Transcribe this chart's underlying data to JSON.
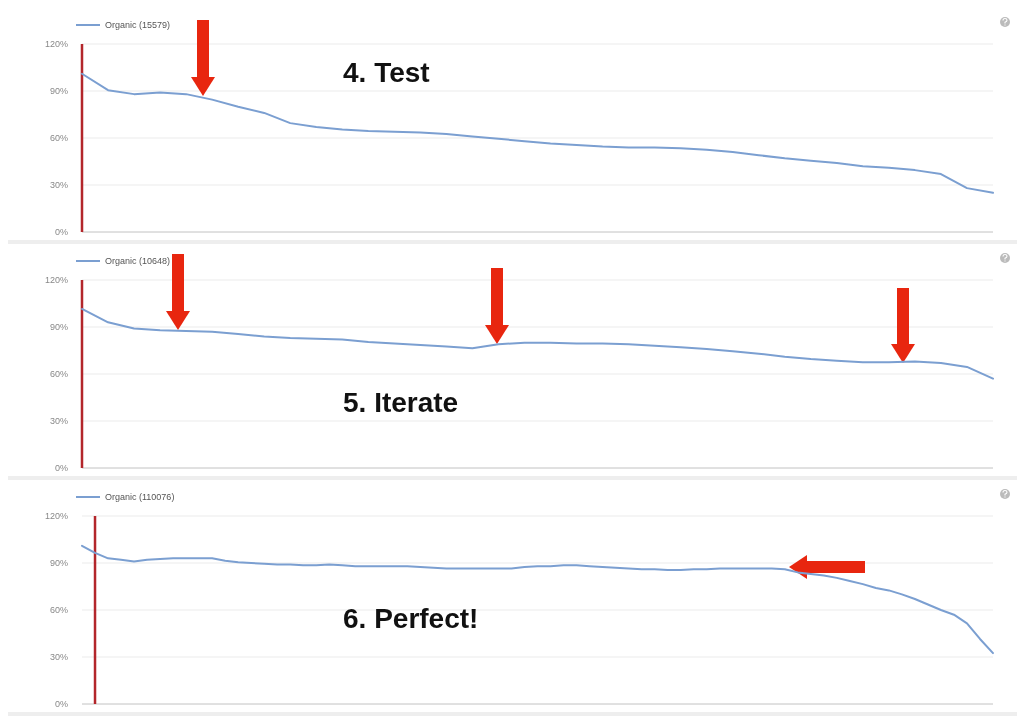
{
  "chart_data": [
    {
      "type": "line",
      "categories": [
        null,
        null,
        null,
        null,
        null,
        null,
        null,
        null,
        null,
        null,
        null,
        null,
        null,
        null,
        null,
        null,
        null,
        null,
        null,
        null,
        null,
        null,
        null,
        null,
        null,
        null,
        null,
        null,
        null,
        null,
        null,
        null,
        null,
        null,
        null,
        null
      ],
      "ylim": [
        0,
        120
      ],
      "yticks": [
        {
          "value": 0,
          "label": "0%"
        },
        {
          "value": 30,
          "label": "30%"
        },
        {
          "value": 60,
          "label": "60%"
        },
        {
          "value": 90,
          "label": "90%"
        },
        {
          "value": 120,
          "label": "120%"
        }
      ],
      "grid": "y",
      "legend": "top left",
      "tick_labels": "y",
      "annotations": [
        "4. Test"
      ],
      "series": [
        {
          "name": "Organic (15579)",
          "color": "#7b9fd1",
          "values": [
            101,
            90.5,
            88,
            89,
            88,
            84.5,
            80,
            76,
            69.5,
            67,
            65.5,
            64.5,
            64,
            63.5,
            62.5,
            61,
            59.5,
            58,
            56.5,
            55.5,
            54.5,
            54,
            54,
            53.5,
            52.5,
            51,
            49,
            47,
            45.5,
            44,
            42,
            41,
            39.5,
            37,
            28,
            25
          ]
        }
      ]
    },
    {
      "type": "line",
      "categories": [
        null,
        null,
        null,
        null,
        null,
        null,
        null,
        null,
        null,
        null,
        null,
        null,
        null,
        null,
        null,
        null,
        null,
        null,
        null,
        null,
        null,
        null,
        null,
        null,
        null,
        null,
        null,
        null,
        null,
        null,
        null,
        null,
        null,
        null,
        null,
        null
      ],
      "ylim": [
        0,
        120
      ],
      "yticks": [
        {
          "value": 0,
          "label": "0%"
        },
        {
          "value": 30,
          "label": "30%"
        },
        {
          "value": 60,
          "label": "60%"
        },
        {
          "value": 90,
          "label": "90%"
        },
        {
          "value": 120,
          "label": "120%"
        }
      ],
      "grid": "y",
      "legend": "top left",
      "tick_labels": "y",
      "annotations": [
        "5. Iterate"
      ],
      "series": [
        {
          "name": "Organic (10648)",
          "color": "#7b9fd1",
          "values": [
            101.5,
            93,
            89,
            88,
            87.5,
            87,
            85.5,
            84,
            83,
            82.5,
            82,
            80.5,
            79.5,
            78.5,
            77.5,
            76.5,
            79,
            80,
            80,
            79.5,
            79.5,
            79,
            78,
            77,
            76,
            74.5,
            73,
            71,
            69.5,
            68.5,
            67.5,
            67.5,
            68,
            67,
            64.5,
            57
          ]
        }
      ]
    },
    {
      "type": "line",
      "categories": [
        null,
        null,
        null,
        null,
        null,
        null,
        null,
        null,
        null,
        null,
        null,
        null,
        null,
        null,
        null,
        null,
        null,
        null,
        null,
        null,
        null,
        null,
        null,
        null,
        null,
        null,
        null,
        null,
        null,
        null,
        null,
        null,
        null,
        null,
        null,
        null,
        null,
        null,
        null,
        null,
        null,
        null,
        null,
        null,
        null,
        null,
        null,
        null,
        null,
        null,
        null,
        null,
        null,
        null,
        null,
        null,
        null,
        null,
        null,
        null,
        null,
        null,
        null,
        null,
        null,
        null,
        null,
        null,
        null,
        null,
        null
      ],
      "ylim": [
        0,
        120
      ],
      "yticks": [
        {
          "value": 0,
          "label": "0%"
        },
        {
          "value": 30,
          "label": "30%"
        },
        {
          "value": 60,
          "label": "60%"
        },
        {
          "value": 90,
          "label": "90%"
        },
        {
          "value": 120,
          "label": "120%"
        }
      ],
      "grid": "y",
      "legend": "top left",
      "tick_labels": "y",
      "annotations": [
        "6. Perfect!"
      ],
      "series": [
        {
          "name": "Organic (110076)",
          "color": "#7b9fd1",
          "values": [
            101,
            96.5,
            93,
            92,
            91,
            92,
            92.5,
            93,
            93,
            93,
            93,
            91.5,
            90.5,
            90,
            89.5,
            89,
            89,
            88.5,
            88.5,
            89,
            88.5,
            88,
            88,
            88,
            88,
            88,
            87.5,
            87,
            86.5,
            86.5,
            86.5,
            86.5,
            86.5,
            86.5,
            87.5,
            88,
            88,
            88.5,
            88.5,
            88,
            87.5,
            87,
            86.5,
            86,
            86,
            85.5,
            85.5,
            86,
            86,
            86.5,
            86.5,
            86.5,
            86.5,
            86.5,
            86,
            84,
            83,
            82,
            80.5,
            78.5,
            76.5,
            74,
            72.5,
            70,
            67,
            63.5,
            60,
            57,
            51.5,
            41.5,
            32.5
          ]
        }
      ]
    }
  ]
}
